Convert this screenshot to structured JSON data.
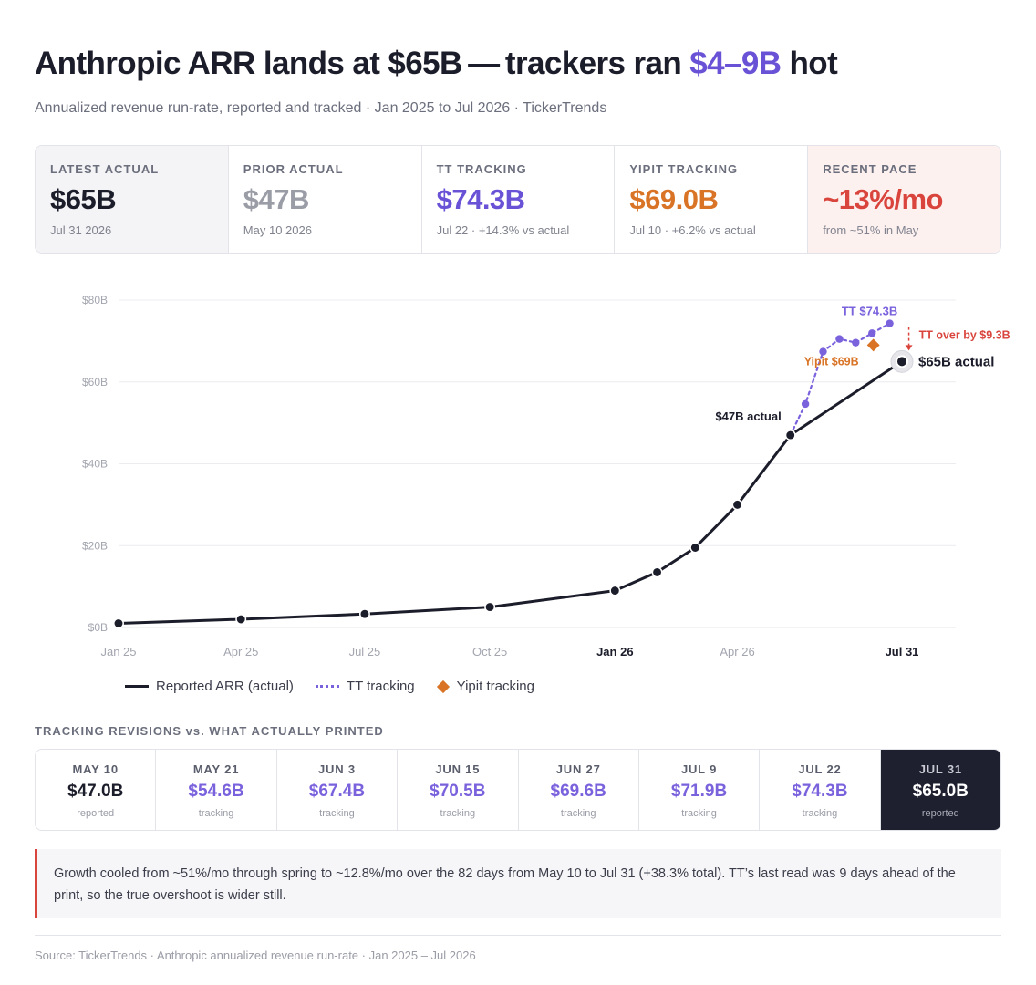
{
  "header": {
    "title_part1": "Anthropic ARR lands at $65B — trackers ran ",
    "title_accent": "$4–9B",
    "title_part2": " hot",
    "subtitle": "Annualized revenue run-rate, reported and tracked · Jan 2025 to Jul 2026 · TickerTrends"
  },
  "kpis": [
    {
      "label": "LATEST ACTUAL",
      "value": "$65B",
      "sub": "Jul 31 2026",
      "color": "#1c1d2b"
    },
    {
      "label": "PRIOR ACTUAL",
      "value": "$47B",
      "sub": "May 10 2026",
      "color": "#9a9ca6"
    },
    {
      "label": "TT TRACKING",
      "value": "$74.3B",
      "sub": "Jul 22 · +14.3% vs actual",
      "color": "#6a52d6"
    },
    {
      "label": "YIPIT TRACKING",
      "value": "$69.0B",
      "sub": "Jul 10 · +6.2% vs actual",
      "color": "#d97426"
    },
    {
      "label": "RECENT PACE",
      "value": "~13%/mo",
      "sub": "from ~51% in May",
      "color": "#d9453c"
    }
  ],
  "chart_data": {
    "type": "line",
    "y_ticks": [
      "$0B",
      "$20B",
      "$40B",
      "$60B",
      "$80B"
    ],
    "y_tick_values": [
      0,
      20,
      40,
      60,
      80
    ],
    "ylim": [
      0,
      80
    ],
    "xlim": [
      "2025-01-01",
      "2026-07-31"
    ],
    "x_ticks": [
      {
        "label": "Jan 25",
        "date": "2025-01-01",
        "bold": false
      },
      {
        "label": "Apr 25",
        "date": "2025-04-01",
        "bold": false
      },
      {
        "label": "Jul 25",
        "date": "2025-07-01",
        "bold": false
      },
      {
        "label": "Oct 25",
        "date": "2025-10-01",
        "bold": false
      },
      {
        "label": "Jan 26",
        "date": "2026-01-01",
        "bold": true
      },
      {
        "label": "Apr 26",
        "date": "2026-04-01",
        "bold": false
      },
      {
        "label": "Jul 31",
        "date": "2026-07-31",
        "bold": true
      }
    ],
    "grid": true,
    "series": [
      {
        "name": "Reported ARR (actual)",
        "color": "#1c1d2b",
        "points": [
          {
            "x": "2025-01-01",
            "y": 1
          },
          {
            "x": "2025-04-01",
            "y": 2
          },
          {
            "x": "2025-07-01",
            "y": 3.3
          },
          {
            "x": "2025-10-01",
            "y": 5
          },
          {
            "x": "2026-01-01",
            "y": 9
          },
          {
            "x": "2026-02-01",
            "y": 13.5
          },
          {
            "x": "2026-03-01",
            "y": 19.5
          },
          {
            "x": "2026-04-01",
            "y": 30
          },
          {
            "x": "2026-05-10",
            "y": 47
          },
          {
            "x": "2026-07-31",
            "y": 65
          }
        ]
      },
      {
        "name": "TT tracking",
        "color": "#7b62dd",
        "points": [
          {
            "x": "2026-05-10",
            "y": 47
          },
          {
            "x": "2026-05-21",
            "y": 54.6
          },
          {
            "x": "2026-06-03",
            "y": 67.4
          },
          {
            "x": "2026-06-15",
            "y": 70.5
          },
          {
            "x": "2026-06-27",
            "y": 69.6
          },
          {
            "x": "2026-07-09",
            "y": 71.9
          },
          {
            "x": "2026-07-22",
            "y": 74.3
          }
        ]
      },
      {
        "name": "Yipit tracking",
        "color": "#d97426",
        "points": [
          {
            "x": "2026-07-10",
            "y": 69
          }
        ]
      }
    ],
    "annotations": {
      "actual_47": "$47B actual",
      "actual_65": "$65B actual",
      "tt_label": "TT $74.3B",
      "yipit_label": "Yipit $69B",
      "overshoot": "TT over by $9.3B"
    },
    "colors": {
      "grid": "#ececf0",
      "tick": "#a3a5af",
      "tick_bold": "#1c1d2b",
      "over": "#d9453c"
    }
  },
  "legend": [
    {
      "label": "Reported ARR (actual)"
    },
    {
      "label": "TT tracking"
    },
    {
      "label": "Yipit tracking"
    }
  ],
  "revisions": {
    "title": "TRACKING REVISIONS vs. WHAT ACTUALLY PRINTED",
    "items": [
      {
        "date": "MAY 10",
        "value": "$47.0B",
        "sub": "reported",
        "color": "#1c1d2b",
        "dark": false
      },
      {
        "date": "MAY 21",
        "value": "$54.6B",
        "sub": "tracking",
        "color": "#7b62dd",
        "dark": false
      },
      {
        "date": "JUN 3",
        "value": "$67.4B",
        "sub": "tracking",
        "color": "#7b62dd",
        "dark": false
      },
      {
        "date": "JUN 15",
        "value": "$70.5B",
        "sub": "tracking",
        "color": "#7b62dd",
        "dark": false
      },
      {
        "date": "JUN 27",
        "value": "$69.6B",
        "sub": "tracking",
        "color": "#7b62dd",
        "dark": false
      },
      {
        "date": "JUL 9",
        "value": "$71.9B",
        "sub": "tracking",
        "color": "#7b62dd",
        "dark": false
      },
      {
        "date": "JUL 22",
        "value": "$74.3B",
        "sub": "tracking",
        "color": "#7b62dd",
        "dark": false
      },
      {
        "date": "JUL 31",
        "value": "$65.0B",
        "sub": "reported",
        "color": "#ffffff",
        "dark": true
      }
    ]
  },
  "note": "Growth cooled from ~51%/mo through spring to ~12.8%/mo over the 82 days from May 10 to Jul 31 (+38.3% total). TT’s last read was 9 days ahead of the print, so the true overshoot is wider still.",
  "source": "Source: TickerTrends · Anthropic annualized revenue run-rate · Jan 2025 – Jul 2026"
}
